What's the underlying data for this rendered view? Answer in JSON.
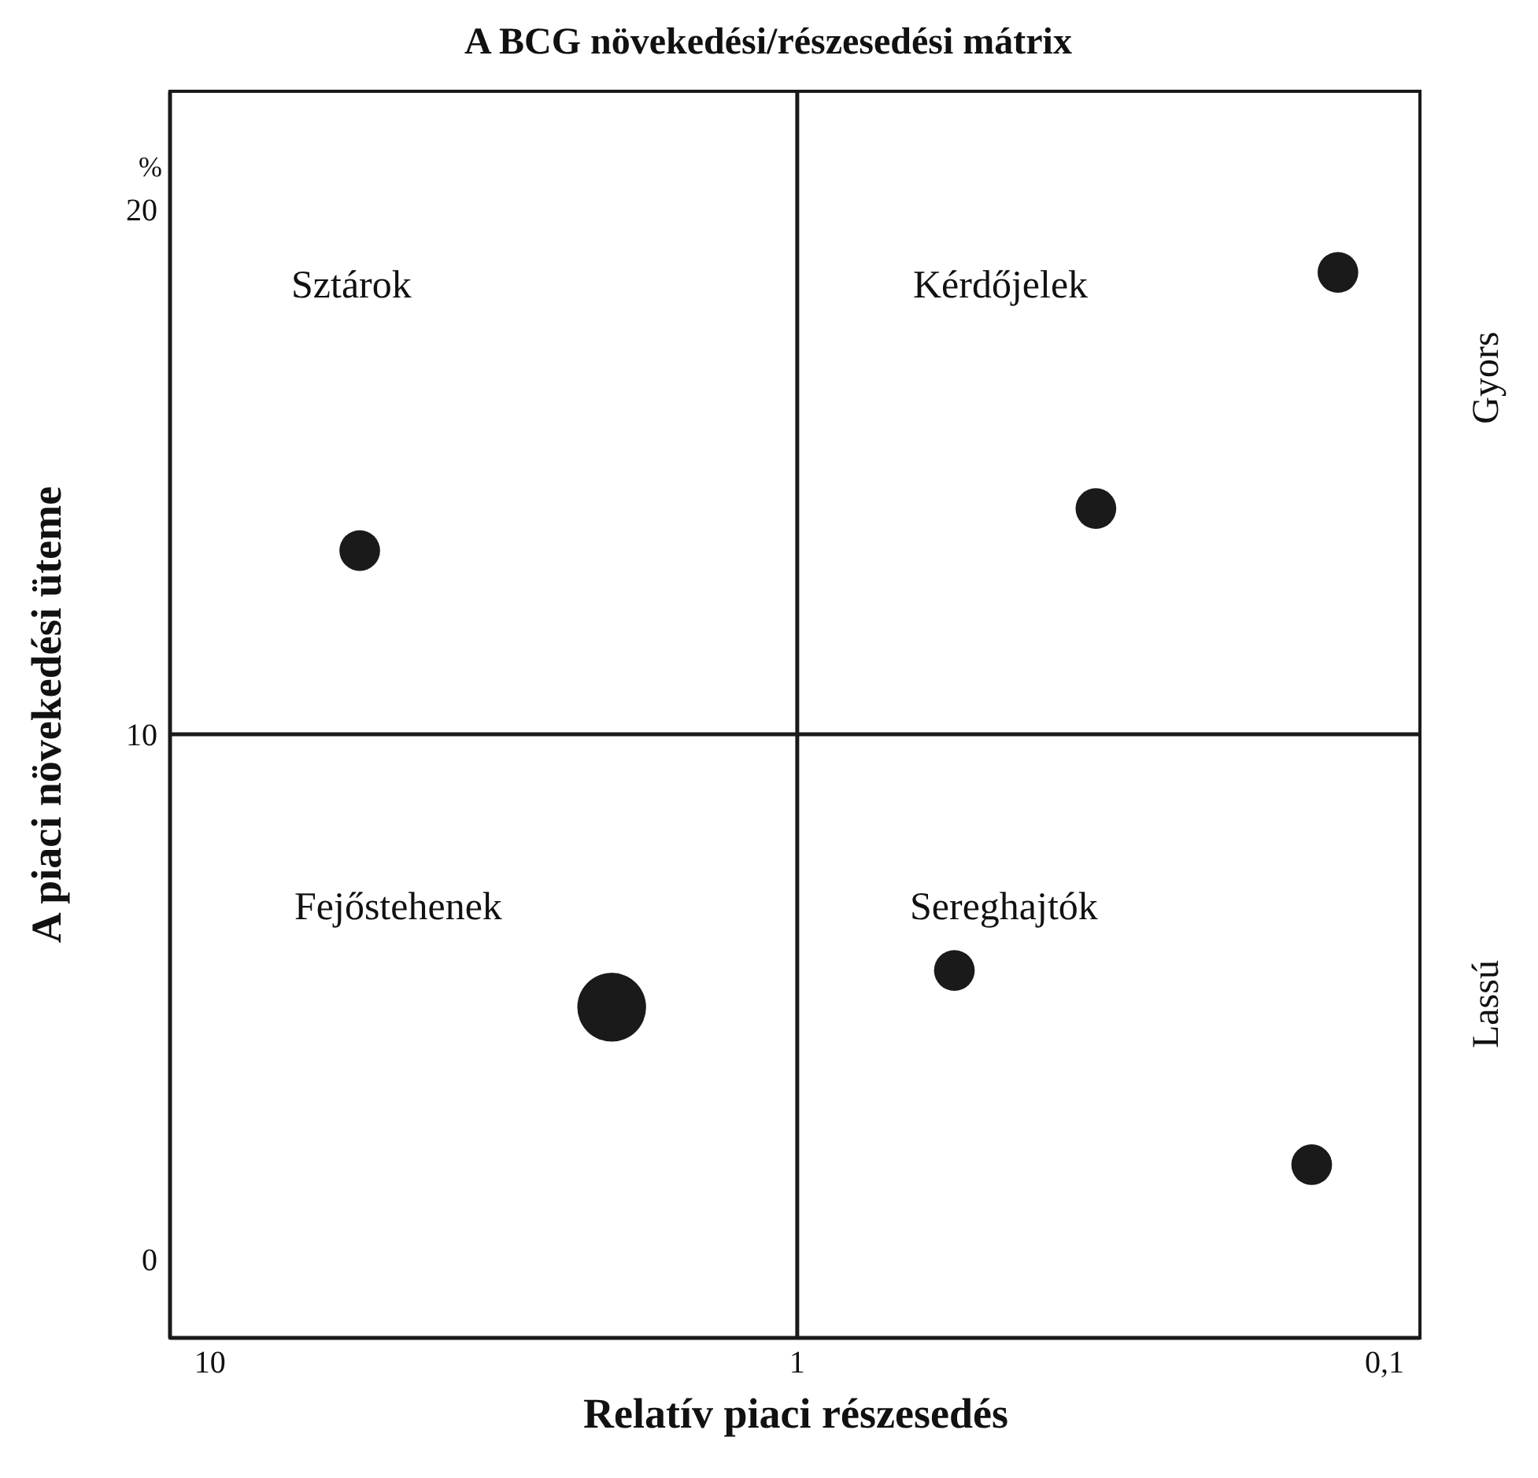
{
  "chart_data": {
    "type": "bubble",
    "title": "A BCG növekedési/részesedési mátrix",
    "xlabel": "Relatív piaci részesedés",
    "ylabel": "A piaci növekedési üteme",
    "log": "x",
    "xlim": [
      11.7,
      0.087
    ],
    "xticks": [
      10,
      1,
      {
        "value": 0.1,
        "label": "0,1"
      }
    ],
    "ylim": [
      -1.5,
      22.25
    ],
    "yticks": [
      0,
      10,
      20
    ],
    "grid": false,
    "series": [
      {
        "color": "#1a1a1a",
        "x": [
          5.56,
          0.31,
          0.12,
          2.07,
          0.54,
          0.133
        ],
        "values": [
          13.5,
          14.3,
          18.8,
          4.8,
          5.5,
          1.8
        ],
        "sizes": [
          0.35,
          0.35,
          0.35,
          1,
          0.35,
          0.35
        ]
      }
    ],
    "ref_lines": [
      {
        "axis": "x",
        "value": 1,
        "color": "#1a1a1a"
      },
      {
        "axis": "y",
        "value": 10,
        "color": "#1a1a1a"
      }
    ],
    "annotations": [
      "Sztárok",
      "Kérdőjelek",
      "Fejőstehenek",
      "Sereghajtók",
      "Gyors",
      "Lassú",
      "%"
    ]
  }
}
